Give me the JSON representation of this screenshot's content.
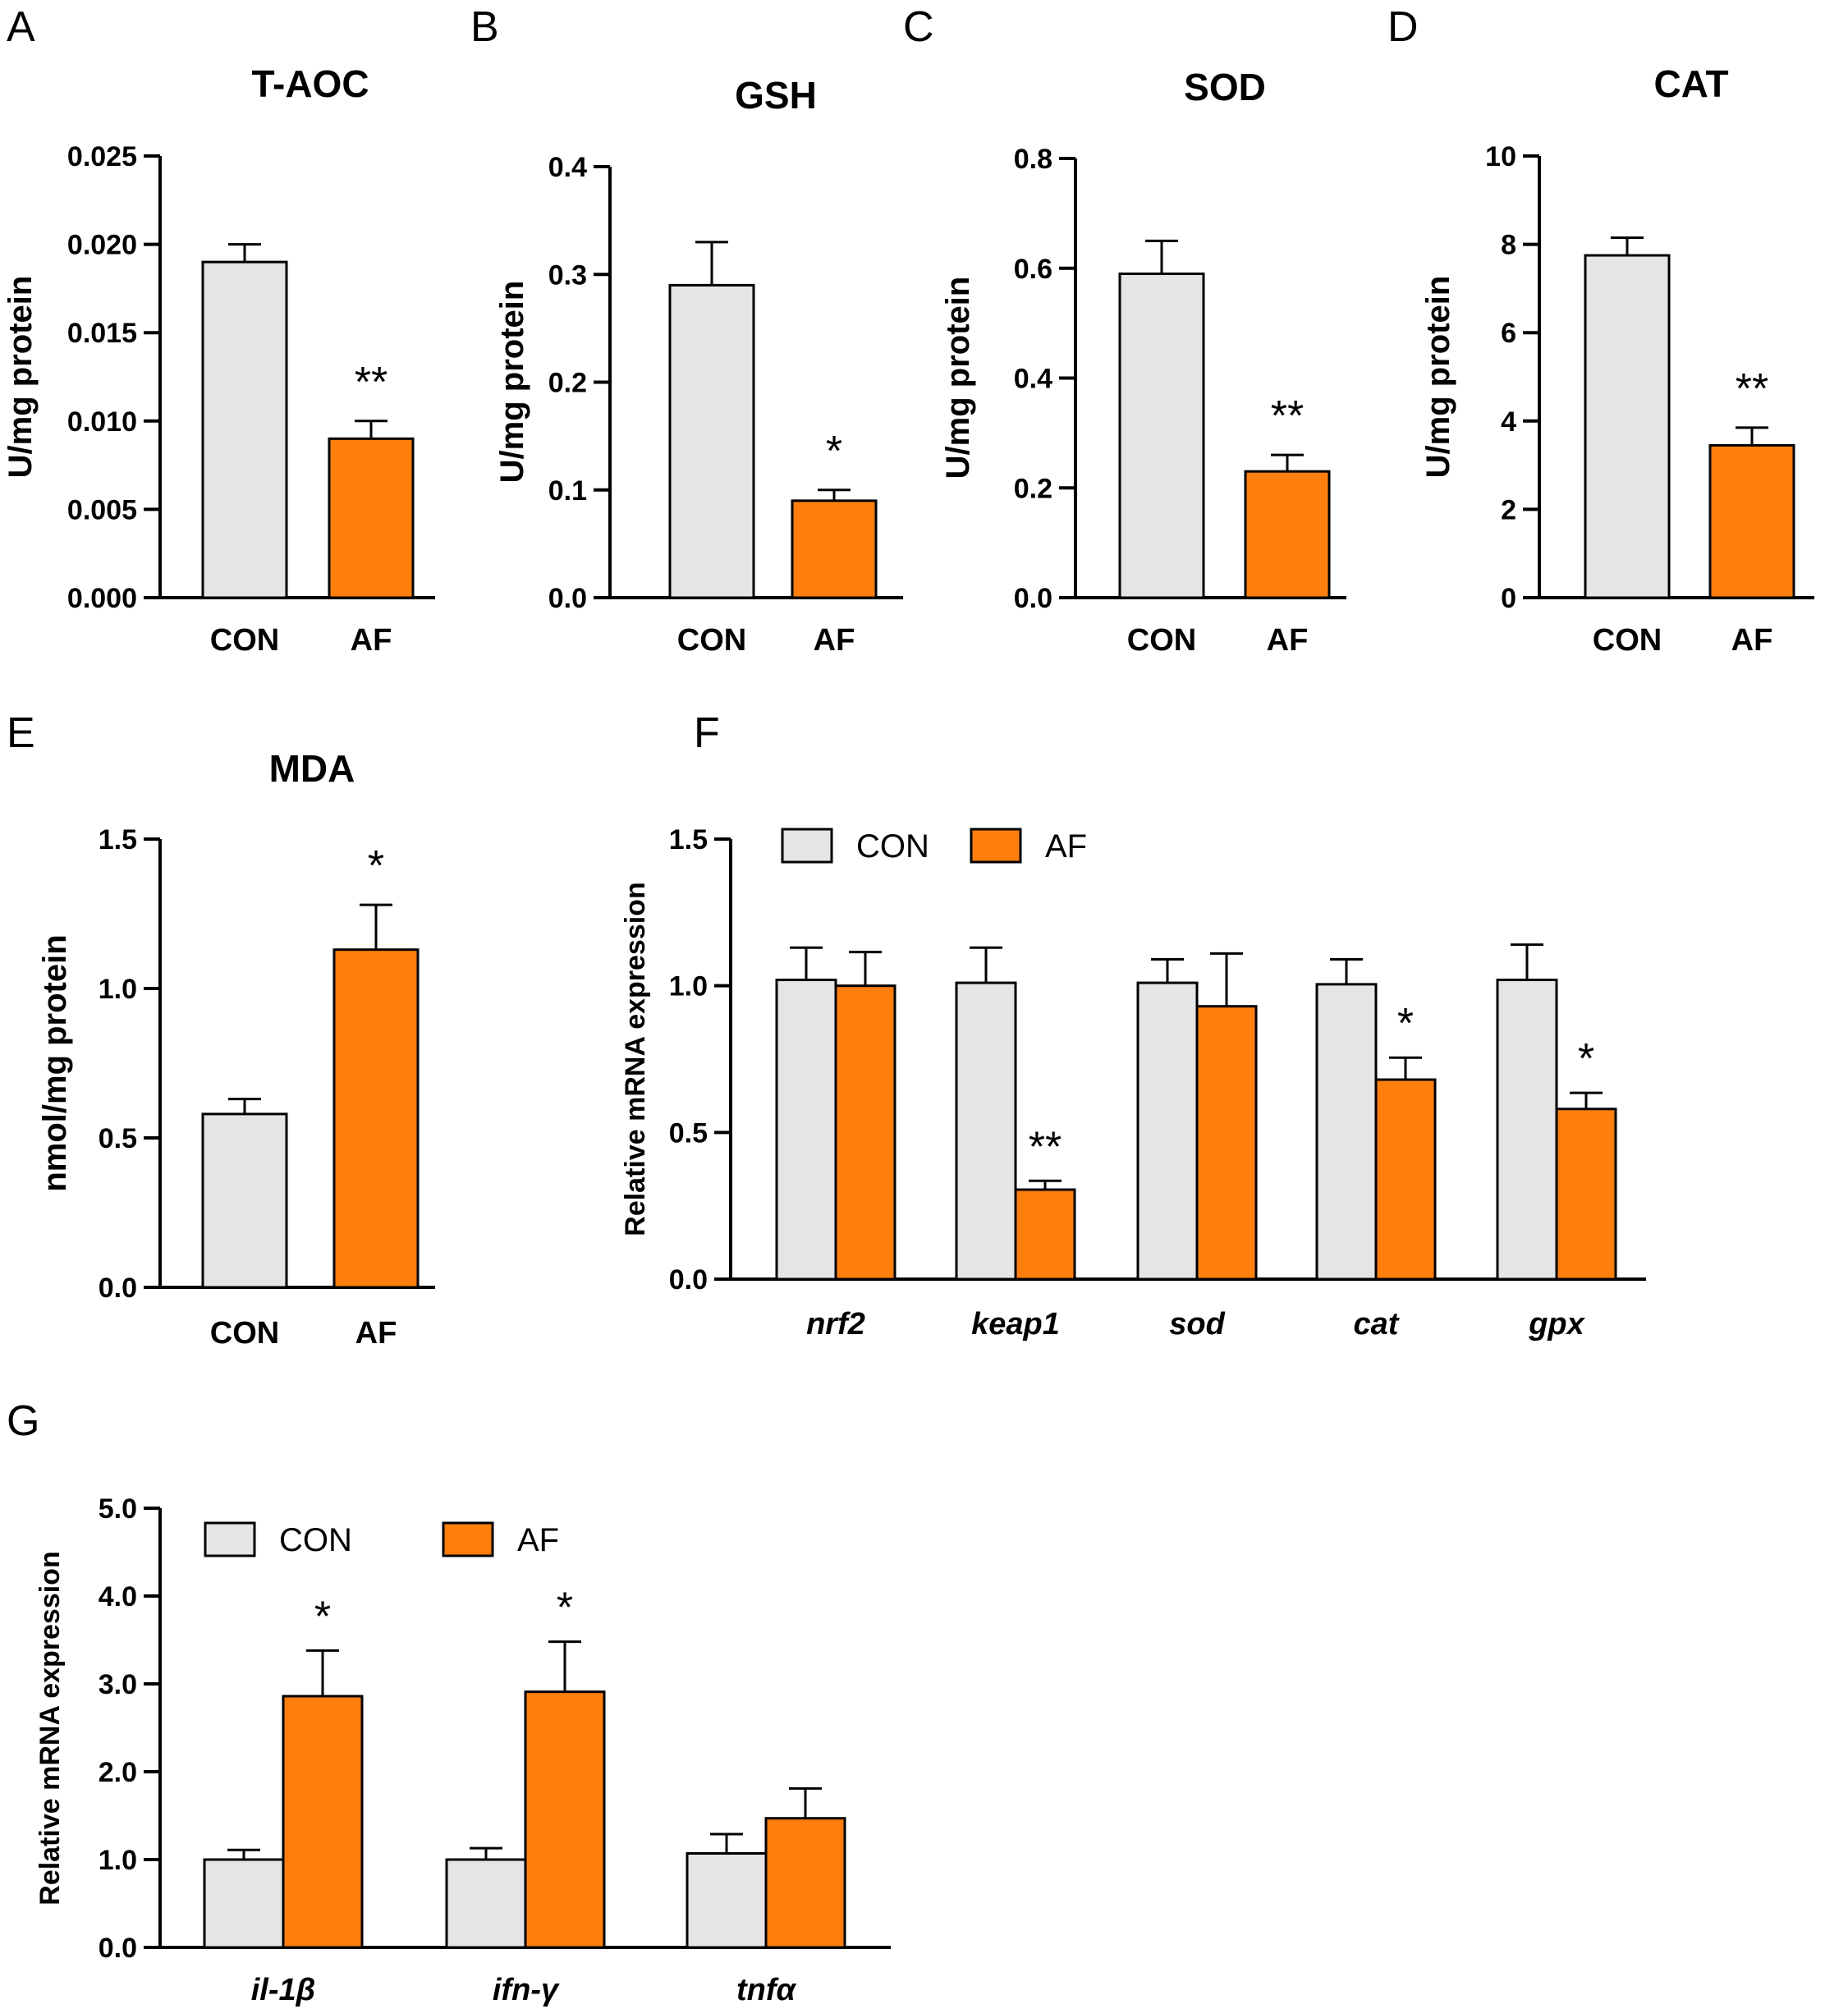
{
  "colors": {
    "con": "#e5e5e5",
    "af": "#ff7f0e",
    "stroke": "#000000"
  },
  "chart_data": [
    {
      "panel": "A",
      "type": "bar",
      "title": "T-AOC",
      "ylabel": "U/mg protein",
      "categories": [
        "CON",
        "AF"
      ],
      "values": [
        0.019,
        0.009
      ],
      "errors": [
        0.001,
        0.001
      ],
      "significance": [
        "",
        "**"
      ],
      "ylim": [
        0,
        0.025
      ],
      "yticks": [
        0.0,
        0.005,
        0.01,
        0.015,
        0.02,
        0.025
      ],
      "ytick_labels": [
        "0.000",
        "0.005",
        "0.010",
        "0.015",
        "0.020",
        "0.025"
      ],
      "colors": [
        "#e5e5e5",
        "#ff7f0e"
      ]
    },
    {
      "panel": "B",
      "type": "bar",
      "title": "GSH",
      "ylabel": "U/mg protein",
      "categories": [
        "CON",
        "AF"
      ],
      "values": [
        0.29,
        0.09
      ],
      "errors": [
        0.04,
        0.01
      ],
      "significance": [
        "",
        "*"
      ],
      "ylim": [
        0,
        0.4
      ],
      "yticks": [
        0.0,
        0.1,
        0.2,
        0.3,
        0.4
      ],
      "ytick_labels": [
        "0.0",
        "0.1",
        "0.2",
        "0.3",
        "0.4"
      ],
      "colors": [
        "#e5e5e5",
        "#ff7f0e"
      ]
    },
    {
      "panel": "C",
      "type": "bar",
      "title": "SOD",
      "ylabel": "U/mg protein",
      "categories": [
        "CON",
        "AF"
      ],
      "values": [
        0.59,
        0.23
      ],
      "errors": [
        0.06,
        0.03
      ],
      "significance": [
        "",
        "**"
      ],
      "ylim": [
        0,
        0.8
      ],
      "yticks": [
        0.0,
        0.2,
        0.4,
        0.6,
        0.8
      ],
      "ytick_labels": [
        "0.0",
        "0.2",
        "0.4",
        "0.6",
        "0.8"
      ],
      "colors": [
        "#e5e5e5",
        "#ff7f0e"
      ]
    },
    {
      "panel": "D",
      "type": "bar",
      "title": "CAT",
      "ylabel": "U/mg protein",
      "categories": [
        "CON",
        "AF"
      ],
      "values": [
        7.75,
        3.45
      ],
      "errors": [
        0.4,
        0.4
      ],
      "significance": [
        "",
        "**"
      ],
      "ylim": [
        0,
        10
      ],
      "yticks": [
        0,
        2,
        4,
        6,
        8,
        10
      ],
      "ytick_labels": [
        "0",
        "2",
        "4",
        "6",
        "8",
        "10"
      ],
      "colors": [
        "#e5e5e5",
        "#ff7f0e"
      ]
    },
    {
      "panel": "E",
      "type": "bar",
      "title": "MDA",
      "ylabel": "nmol/mg protein",
      "categories": [
        "CON",
        "AF"
      ],
      "values": [
        0.58,
        1.13
      ],
      "errors": [
        0.05,
        0.15
      ],
      "significance": [
        "",
        "*"
      ],
      "ylim": [
        0,
        1.5
      ],
      "yticks": [
        0.0,
        0.5,
        1.0,
        1.5
      ],
      "ytick_labels": [
        "0.0",
        "0.5",
        "1.0",
        "1.5"
      ],
      "colors": [
        "#e5e5e5",
        "#ff7f0e"
      ]
    },
    {
      "panel": "F",
      "type": "bar",
      "title": "",
      "ylabel": "Relative  mRNA expression",
      "categories": [
        "nrf2",
        "keap1",
        "sod",
        "cat",
        "gpx"
      ],
      "series": [
        {
          "name": "CON",
          "values": [
            1.02,
            1.01,
            1.01,
            1.005,
            1.02
          ],
          "errors": [
            0.11,
            0.12,
            0.08,
            0.085,
            0.12
          ]
        },
        {
          "name": "AF",
          "values": [
            1.0,
            0.305,
            0.93,
            0.68,
            0.58
          ],
          "errors": [
            0.115,
            0.03,
            0.18,
            0.075,
            0.055
          ]
        }
      ],
      "significance": [
        "",
        "**",
        "",
        "*",
        "*"
      ],
      "ylim": [
        0,
        1.5
      ],
      "yticks": [
        0.0,
        0.5,
        1.0,
        1.5
      ],
      "ytick_labels": [
        "0.0",
        "0.5",
        "1.0",
        "1.5"
      ],
      "legend": [
        "CON",
        "AF"
      ],
      "legend_position": "top-left",
      "colors": [
        "#e5e5e5",
        "#ff7f0e"
      ]
    },
    {
      "panel": "G",
      "type": "bar",
      "title": "",
      "ylabel": "Relative  mRNA expression",
      "categories": [
        "il-1β",
        "ifn-γ",
        "tnfα"
      ],
      "series": [
        {
          "name": "CON",
          "values": [
            1.0,
            1.0,
            1.07
          ],
          "errors": [
            0.11,
            0.13,
            0.22
          ]
        },
        {
          "name": "AF",
          "values": [
            2.86,
            2.91,
            1.47
          ],
          "errors": [
            0.52,
            0.57,
            0.34
          ]
        }
      ],
      "significance": [
        "*",
        "*",
        ""
      ],
      "ylim": [
        0,
        5.0
      ],
      "yticks": [
        0.0,
        1.0,
        2.0,
        3.0,
        4.0,
        5.0
      ],
      "ytick_labels": [
        "0.0",
        "1.0",
        "2.0",
        "3.0",
        "4.0",
        "5.0"
      ],
      "legend": [
        "CON",
        "AF"
      ],
      "legend_position": "top-left",
      "colors": [
        "#e5e5e5",
        "#ff7f0e"
      ]
    }
  ]
}
